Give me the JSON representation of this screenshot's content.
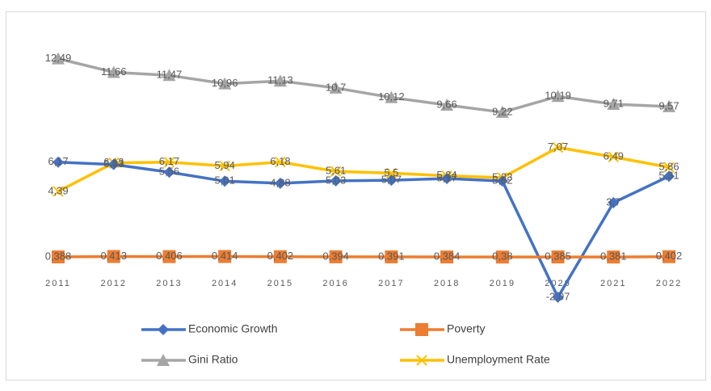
{
  "chart_data": {
    "type": "line",
    "categories": [
      "2011",
      "2012",
      "2013",
      "2014",
      "2015",
      "2016",
      "2017",
      "2018",
      "2019",
      "2020",
      "2021",
      "2022"
    ],
    "ylim": [
      -4,
      14
    ],
    "series": [
      {
        "name": "Economic Growth",
        "color": "#4472c4",
        "marker": "diamond",
        "values": [
          6.17,
          6.03,
          5.56,
          5.01,
          4.88,
          5.03,
          5.07,
          5.17,
          5.02,
          -2.07,
          3.7,
          5.31
        ],
        "value_labels": [
          "6,17",
          "6,03",
          "5,56",
          "5,01",
          "4,88",
          "5,03",
          "5,07",
          "5,17",
          "5,02",
          "-2,07",
          "3,7",
          "5,31"
        ]
      },
      {
        "name": "Poverty",
        "color": "#ed7d31",
        "marker": "square",
        "values": [
          0.388,
          0.413,
          0.406,
          0.414,
          0.402,
          0.394,
          0.391,
          0.384,
          0.38,
          0.385,
          0.381,
          0.402
        ],
        "value_labels": [
          "0,388",
          "0,413",
          "0,406",
          "0,414",
          "0,402",
          "0,394",
          "0,391",
          "0,384",
          "0,38",
          "0,385",
          "0,381",
          "0,402"
        ]
      },
      {
        "name": "Gini Ratio",
        "color": "#a5a5a5",
        "marker": "triangle",
        "values": [
          12.49,
          11.66,
          11.47,
          10.96,
          11.13,
          10.7,
          10.12,
          9.66,
          9.22,
          10.19,
          9.71,
          9.57
        ],
        "value_labels": [
          "12,49",
          "11,66",
          "11,47",
          "10,96",
          "11,13",
          "10,7",
          "10,12",
          "9,66",
          "9,22",
          "10,19",
          "9,71",
          "9,57"
        ]
      },
      {
        "name": "Unemployment Rate",
        "color": "#ffc000",
        "marker": "x",
        "values": [
          4.39,
          6.13,
          6.17,
          5.94,
          6.18,
          5.61,
          5.5,
          5.34,
          5.23,
          7.07,
          6.49,
          5.86
        ],
        "value_labels": [
          "4,39",
          "6,13",
          "6,17",
          "5,94",
          "6,18",
          "5,61",
          "5,5",
          "5,34",
          "5,23",
          "7,07",
          "6,49",
          "5,86"
        ]
      }
    ]
  }
}
